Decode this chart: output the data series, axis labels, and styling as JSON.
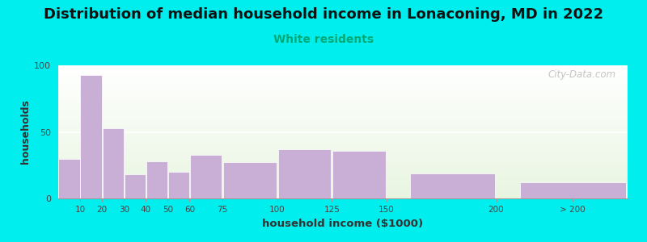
{
  "title": "Distribution of median household income in Lonaconing, MD in 2022",
  "subtitle": "White residents",
  "xlabel": "household income ($1000)",
  "ylabel": "households",
  "background_outer": "#00EEEE",
  "bar_color": "#c9aed6",
  "ylim": [
    0,
    100
  ],
  "title_fontsize": 13,
  "subtitle_fontsize": 10,
  "subtitle_color": "#00aa77",
  "watermark": "City-Data.com",
  "tick_positions": [
    10,
    20,
    30,
    40,
    50,
    60,
    75,
    100,
    125,
    150,
    200,
    235
  ],
  "tick_labels": [
    "10",
    "20",
    "30",
    "40",
    "50",
    "60",
    "75",
    "100",
    "125",
    "150",
    "200",
    "> 200"
  ],
  "bar_lefts": [
    0,
    10,
    20,
    30,
    40,
    50,
    60,
    75,
    100,
    125,
    160,
    210
  ],
  "bar_widths": [
    10,
    10,
    10,
    10,
    10,
    10,
    15,
    25,
    25,
    25,
    40,
    50
  ],
  "bar_heights": [
    30,
    93,
    53,
    18,
    28,
    20,
    33,
    27,
    37,
    36,
    19,
    12
  ]
}
